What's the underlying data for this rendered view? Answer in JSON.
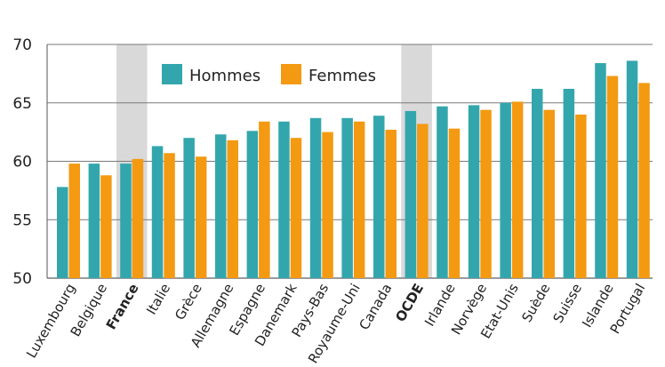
{
  "chart_data": {
    "type": "bar",
    "categories": [
      "Luxembourg",
      "Belgique",
      "France",
      "Italie",
      "Grèce",
      "Allemagne",
      "Espagne",
      "Danemark",
      "Pays-Bas",
      "Royaume-Uni",
      "Canada",
      "OCDE",
      "Irlande",
      "Norvège",
      "Etat-Unis",
      "Suède",
      "Suisse",
      "Islande",
      "Portugal"
    ],
    "highlighted_categories": [
      "France",
      "OCDE"
    ],
    "series": [
      {
        "name": "Hommes",
        "color": "#33a6ad",
        "values": [
          57.8,
          59.8,
          59.8,
          61.3,
          62.0,
          62.3,
          62.6,
          63.4,
          63.7,
          63.7,
          63.9,
          64.3,
          64.7,
          64.8,
          65.0,
          66.2,
          66.2,
          68.4,
          68.6
        ]
      },
      {
        "name": "Femmes",
        "color": "#f39a12",
        "values": [
          59.8,
          58.8,
          60.2,
          60.7,
          60.4,
          61.8,
          63.4,
          62.0,
          62.5,
          63.4,
          62.7,
          63.2,
          62.8,
          64.4,
          65.1,
          64.4,
          64.0,
          67.3,
          66.7
        ]
      }
    ],
    "ylim": [
      50,
      70
    ],
    "yticks": [
      50,
      55,
      60,
      65,
      70
    ],
    "grid": true,
    "legend_position": "top-left"
  },
  "colors": {
    "grid": "#7a7a7a",
    "highlight_band": "#d9d9d9",
    "axis": "#555555"
  }
}
